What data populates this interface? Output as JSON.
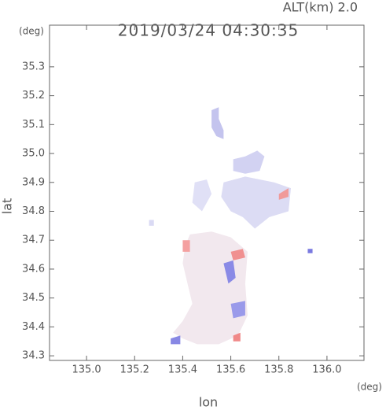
{
  "chart_data": {
    "type": "map",
    "title": "2019/03/24 04:30:35",
    "subtitle": "ALT(km) 2.0",
    "x_label": "lon",
    "y_label": "lat",
    "x_unit": "(deg)",
    "y_unit": "(deg)",
    "xlim": [
      134.846,
      136.154
    ],
    "ylim": [
      34.284,
      35.444
    ],
    "xticks": [
      {
        "value": 135,
        "label": "135.0"
      },
      135.2,
      135.4,
      135.6,
      135.8,
      {
        "value": 136,
        "label": "136.0"
      }
    ],
    "yticks": [
      34.3,
      34.4,
      34.5,
      34.6,
      34.7,
      34.8,
      34.9,
      {
        "value": 35,
        "label": "35.0"
      },
      35.1,
      35.2,
      35.3
    ],
    "regions": [
      {
        "color": "#c4c4ee",
        "points": [
          [
            135.52,
            35.15
          ],
          [
            135.55,
            35.16
          ],
          [
            135.55,
            35.12
          ],
          [
            135.57,
            35.08
          ],
          [
            135.57,
            35.05
          ],
          [
            135.54,
            35.06
          ],
          [
            135.52,
            35.09
          ]
        ]
      },
      {
        "color": "#d2d2f2",
        "points": [
          [
            135.61,
            34.98
          ],
          [
            135.66,
            34.99
          ],
          [
            135.71,
            35.01
          ],
          [
            135.74,
            34.99
          ],
          [
            135.72,
            34.94
          ],
          [
            135.66,
            34.93
          ],
          [
            135.61,
            34.94
          ]
        ]
      },
      {
        "color": "#dcdcf4",
        "points": [
          [
            135.57,
            34.9
          ],
          [
            135.66,
            34.92
          ],
          [
            135.78,
            34.9
          ],
          [
            135.85,
            34.88
          ],
          [
            135.84,
            34.8
          ],
          [
            135.76,
            34.78
          ],
          [
            135.7,
            34.74
          ],
          [
            135.65,
            34.78
          ],
          [
            135.6,
            34.8
          ],
          [
            135.56,
            34.85
          ]
        ]
      },
      {
        "color": "#e0e0f6",
        "points": [
          [
            135.45,
            34.9
          ],
          [
            135.5,
            34.91
          ],
          [
            135.52,
            34.86
          ],
          [
            135.48,
            34.8
          ],
          [
            135.44,
            34.83
          ]
        ]
      },
      {
        "color": "#f2e8ee",
        "points": [
          [
            135.43,
            34.72
          ],
          [
            135.52,
            34.73
          ],
          [
            135.6,
            34.71
          ],
          [
            135.67,
            34.66
          ],
          [
            135.66,
            34.55
          ],
          [
            135.67,
            34.44
          ],
          [
            135.63,
            34.37
          ],
          [
            135.55,
            34.34
          ],
          [
            135.46,
            34.34
          ],
          [
            135.4,
            34.36
          ],
          [
            135.36,
            34.38
          ],
          [
            135.4,
            34.42
          ],
          [
            135.44,
            34.48
          ],
          [
            135.42,
            34.55
          ],
          [
            135.4,
            34.62
          ],
          [
            135.41,
            34.68
          ]
        ]
      },
      {
        "color": "#8a8ae6",
        "points": [
          [
            135.57,
            34.62
          ],
          [
            135.61,
            34.63
          ],
          [
            135.62,
            34.57
          ],
          [
            135.59,
            34.55
          ]
        ]
      },
      {
        "color": "#9a9aea",
        "points": [
          [
            135.6,
            34.48
          ],
          [
            135.66,
            34.49
          ],
          [
            135.66,
            34.44
          ],
          [
            135.61,
            34.43
          ]
        ]
      },
      {
        "color": "#f09090",
        "points": [
          [
            135.6,
            34.66
          ],
          [
            135.65,
            34.67
          ],
          [
            135.66,
            34.64
          ],
          [
            135.61,
            34.63
          ]
        ]
      },
      {
        "color": "#f4a0a0",
        "points": [
          [
            135.4,
            34.7
          ],
          [
            135.43,
            34.7
          ],
          [
            135.43,
            34.66
          ],
          [
            135.4,
            34.66
          ]
        ]
      },
      {
        "color": "#f08888",
        "points": [
          [
            135.61,
            34.37
          ],
          [
            135.64,
            34.38
          ],
          [
            135.64,
            34.35
          ],
          [
            135.61,
            34.35
          ]
        ]
      },
      {
        "color": "#f09a9a",
        "points": [
          [
            135.8,
            34.86
          ],
          [
            135.84,
            34.88
          ],
          [
            135.84,
            34.85
          ],
          [
            135.8,
            34.84
          ]
        ]
      },
      {
        "color": "#8888e4",
        "points": [
          [
            135.35,
            34.36
          ],
          [
            135.39,
            34.37
          ],
          [
            135.39,
            34.34
          ],
          [
            135.35,
            34.34
          ]
        ]
      },
      {
        "color": "#7a7ae0",
        "points": [
          [
            135.92,
            34.67
          ],
          [
            135.94,
            34.67
          ],
          [
            135.94,
            34.655
          ],
          [
            135.92,
            34.655
          ]
        ]
      },
      {
        "color": "#dadaf4",
        "points": [
          [
            135.26,
            34.77
          ],
          [
            135.28,
            34.77
          ],
          [
            135.28,
            34.75
          ],
          [
            135.26,
            34.75
          ]
        ]
      }
    ]
  }
}
